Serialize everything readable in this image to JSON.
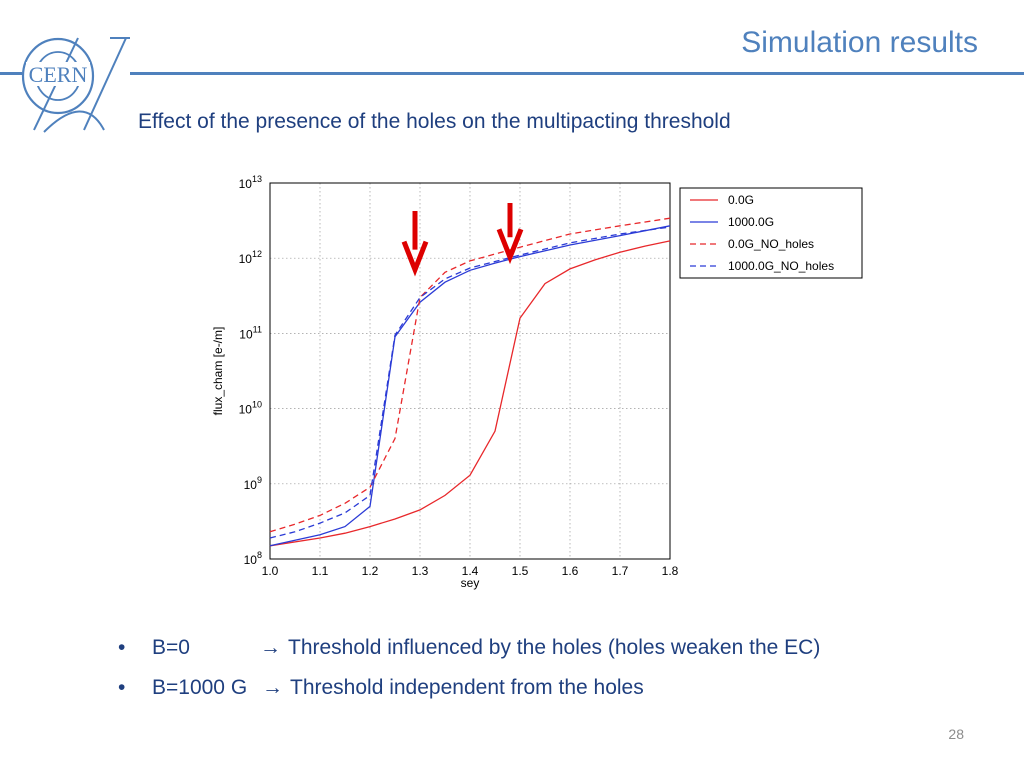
{
  "slide": {
    "title": "Simulation results",
    "subtitle": "Effect of the presence of the holes on the multipacting threshold",
    "page_number": "28",
    "logo_text": "CERN",
    "bullets": [
      {
        "label": "B=0",
        "arrow": "→",
        "text": "Threshold influenced by the holes (holes weaken the EC)"
      },
      {
        "label": "B=1000 G",
        "arrow": "→",
        "text": "Threshold independent from the holes"
      }
    ]
  },
  "colors": {
    "accent": "#4f81bd",
    "text": "#1f3f7f",
    "series_red": "#e8282b",
    "series_blue": "#2b3bd6",
    "marker_arrow": "#dd0000"
  },
  "chart_data": {
    "type": "line",
    "xlabel": "sey",
    "ylabel": "flux_cham [e-/m]",
    "xlim": [
      1.0,
      1.8
    ],
    "ylim": [
      100000000.0,
      10000000000000.0
    ],
    "yscale": "log",
    "xticks": [
      "1.0",
      "1.1",
      "1.2",
      "1.3",
      "1.4",
      "1.5",
      "1.6",
      "1.7",
      "1.8"
    ],
    "yticks": [
      {
        "base": "10",
        "exp": "8"
      },
      {
        "base": "10",
        "exp": "9"
      },
      {
        "base": "10",
        "exp": "10"
      },
      {
        "base": "10",
        "exp": "11"
      },
      {
        "base": "10",
        "exp": "12"
      },
      {
        "base": "10",
        "exp": "13"
      }
    ],
    "grid": true,
    "legend_position": "outside-top-right",
    "series": [
      {
        "name": "0.0G",
        "color": "#e8282b",
        "dash": false,
        "x": [
          1.0,
          1.1,
          1.15,
          1.2,
          1.25,
          1.3,
          1.35,
          1.4,
          1.45,
          1.5,
          1.55,
          1.6,
          1.65,
          1.7,
          1.75,
          1.8
        ],
        "y": [
          150000000.0,
          190000000.0,
          220000000.0,
          270000000.0,
          340000000.0,
          450000000.0,
          700000000.0,
          1300000000.0,
          5000000000.0,
          160000000000.0,
          460000000000.0,
          720000000000.0,
          950000000000.0,
          1200000000000.0,
          1450000000000.0,
          1700000000000.0
        ]
      },
      {
        "name": "1000.0G",
        "color": "#2b3bd6",
        "dash": false,
        "x": [
          1.0,
          1.1,
          1.15,
          1.2,
          1.25,
          1.3,
          1.35,
          1.4,
          1.45,
          1.5,
          1.6,
          1.7,
          1.8
        ],
        "y": [
          150000000.0,
          210000000.0,
          270000000.0,
          500000000.0,
          90000000000.0,
          260000000000.0,
          480000000000.0,
          690000000000.0,
          860000000000.0,
          1050000000000.0,
          1500000000000.0,
          2000000000000.0,
          2700000000000.0
        ]
      },
      {
        "name": "0.0G_NO_holes",
        "color": "#e8282b",
        "dash": true,
        "x": [
          1.0,
          1.05,
          1.1,
          1.15,
          1.2,
          1.25,
          1.3,
          1.35,
          1.4,
          1.5,
          1.6,
          1.7,
          1.8
        ],
        "y": [
          230000000.0,
          290000000.0,
          380000000.0,
          550000000.0,
          900000000.0,
          4000000000.0,
          300000000000.0,
          650000000000.0,
          920000000000.0,
          1400000000000.0,
          2100000000000.0,
          2700000000000.0,
          3400000000000.0
        ]
      },
      {
        "name": "1000.0G_NO_holes",
        "color": "#2b3bd6",
        "dash": true,
        "x": [
          1.0,
          1.05,
          1.1,
          1.15,
          1.2,
          1.25,
          1.3,
          1.35,
          1.4,
          1.5,
          1.6,
          1.7,
          1.8
        ],
        "y": [
          190000000.0,
          230000000.0,
          300000000.0,
          410000000.0,
          700000000.0,
          95000000000.0,
          300000000000.0,
          530000000000.0,
          740000000000.0,
          1100000000000.0,
          1600000000000.0,
          2100000000000.0,
          2600000000000.0
        ]
      }
    ],
    "annotations": [
      {
        "type": "arrow-down",
        "x": 1.29,
        "y_top": 1800000000000.0,
        "y_bottom": 1300000000000.0
      },
      {
        "type": "arrow-down",
        "x": 1.48,
        "y_top": 2300000000000.0,
        "y_bottom": 1900000000000.0
      }
    ]
  }
}
